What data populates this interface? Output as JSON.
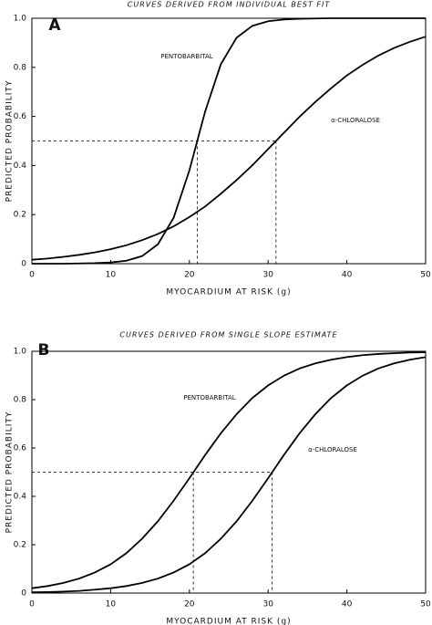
{
  "chart_data": [
    {
      "type": "line",
      "title": "CURVES DERIVED FROM INDIVIDUAL BEST FIT",
      "panel_label": "A",
      "x_label": "MYOCARDIUM AT RISK (g)",
      "y_label": "PREDICTED PROBABILITY",
      "x": [
        0,
        2,
        4,
        6,
        8,
        10,
        12,
        14,
        16,
        18,
        20,
        22,
        24,
        26,
        28,
        30,
        32,
        34,
        36,
        38,
        40,
        42,
        44,
        46,
        48,
        50
      ],
      "series": [
        {
          "name": "PENTOBARBITAL",
          "color": "#000000",
          "values": [
            0,
            0,
            0,
            0.001,
            0.002,
            0.005,
            0.012,
            0.031,
            0.079,
            0.187,
            0.38,
            0.62,
            0.813,
            0.921,
            0.969,
            0.988,
            0.995,
            0.998,
            0.999,
            1,
            1,
            1,
            1,
            1,
            1,
            1
          ]
        },
        {
          "name": "α-CHLORALOSE",
          "color": "#000000",
          "values": [
            0.016,
            0.021,
            0.028,
            0.036,
            0.046,
            0.059,
            0.075,
            0.096,
            0.121,
            0.152,
            0.19,
            0.233,
            0.285,
            0.341,
            0.401,
            0.467,
            0.533,
            0.599,
            0.659,
            0.715,
            0.767,
            0.81,
            0.848,
            0.879,
            0.904,
            0.925
          ]
        }
      ],
      "reference_y": 0.5,
      "reference_x": [
        21,
        31
      ],
      "xlim": [
        0,
        50
      ],
      "xticks": [
        0,
        10,
        20,
        30,
        40,
        50
      ],
      "ylim": [
        0,
        1
      ],
      "yticks": [
        0,
        0.2,
        0.4,
        0.6,
        0.8,
        {
          "value": 1,
          "label": "1.0"
        }
      ]
    },
    {
      "type": "line",
      "title": "CURVES DERIVED FROM SINGLE SLOPE ESTIMATE",
      "panel_label": "B",
      "x_label": "MYOCARDIUM AT RISK (g)",
      "y_label": "PREDICTED PROBABILITY",
      "x": [
        0,
        2,
        4,
        6,
        8,
        10,
        12,
        14,
        16,
        18,
        20,
        22,
        24,
        26,
        28,
        30,
        32,
        34,
        36,
        38,
        40,
        42,
        44,
        46,
        48,
        50
      ],
      "series": [
        {
          "name": "PENTOBARBITAL",
          "color": "#000000",
          "values": [
            0.02,
            0.029,
            0.042,
            0.06,
            0.085,
            0.119,
            0.165,
            0.225,
            0.297,
            0.382,
            0.475,
            0.571,
            0.661,
            0.74,
            0.807,
            0.859,
            0.899,
            0.929,
            0.95,
            0.965,
            0.976,
            0.984,
            0.989,
            0.992,
            0.995,
            0.996
          ]
        },
        {
          "name": "α-CHLORALOSE",
          "color": "#000000",
          "values": [
            0.003,
            0.004,
            0.006,
            0.009,
            0.014,
            0.02,
            0.029,
            0.042,
            0.06,
            0.085,
            0.119,
            0.165,
            0.225,
            0.297,
            0.382,
            0.475,
            0.571,
            0.661,
            0.74,
            0.807,
            0.859,
            0.899,
            0.929,
            0.95,
            0.965,
            0.976
          ]
        }
      ],
      "reference_y": 0.5,
      "reference_x": [
        20.5,
        30.5
      ],
      "xlim": [
        0,
        50
      ],
      "xticks": [
        0,
        10,
        20,
        30,
        40,
        50
      ],
      "ylim": [
        0,
        1
      ],
      "yticks": [
        0,
        0.2,
        0.4,
        0.6,
        0.8,
        {
          "value": 1,
          "label": "1.0"
        }
      ]
    }
  ]
}
